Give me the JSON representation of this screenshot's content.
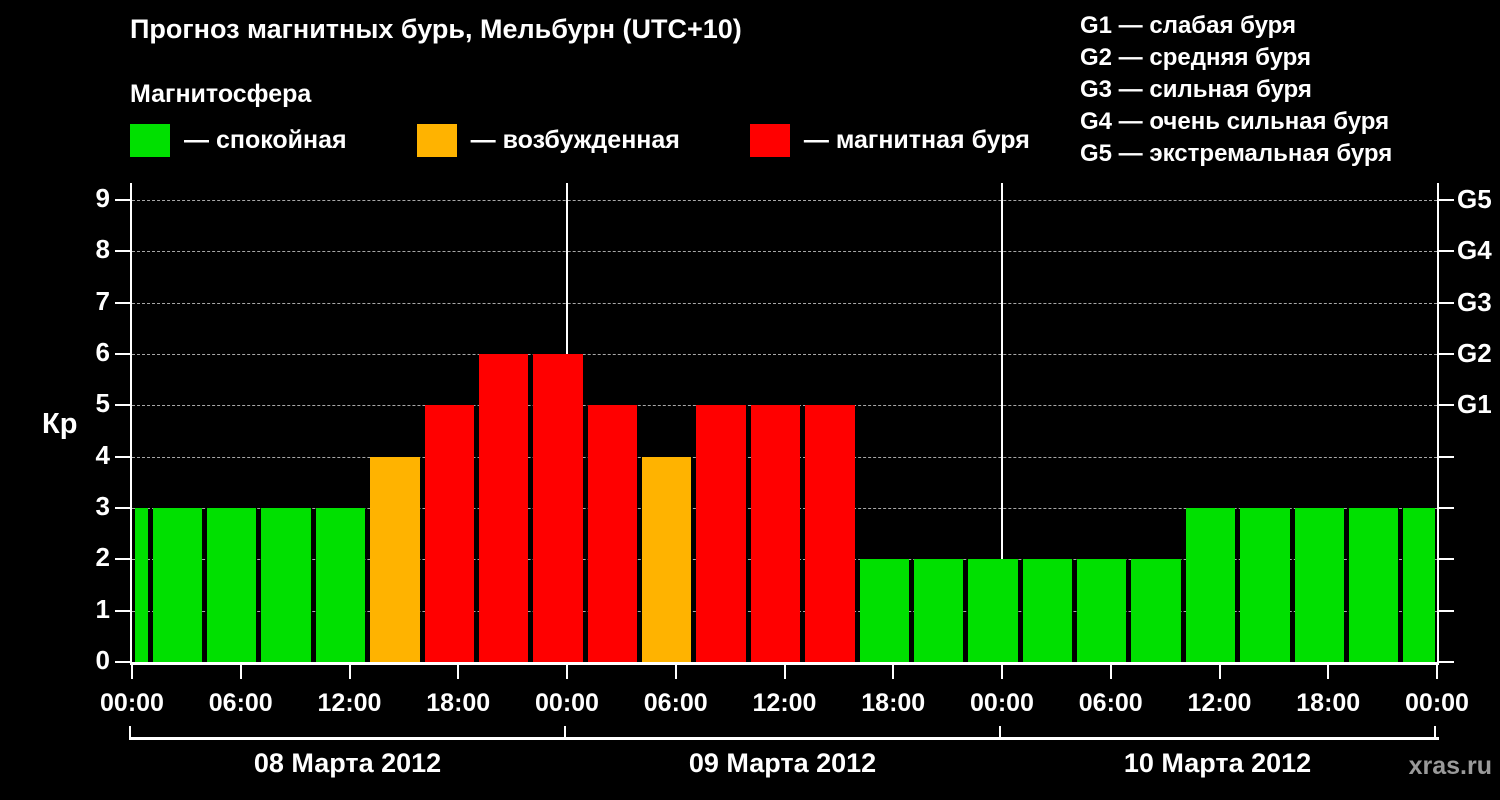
{
  "title": "Прогноз магнитных бурь, Мельбурн (UTC+10)",
  "legend": {
    "title": "Магнитосфера",
    "items": [
      {
        "state": "quiet",
        "label": "— спокойная",
        "color": "#00e000"
      },
      {
        "state": "unsettled",
        "label": "— возбужденная",
        "color": "#ffb300"
      },
      {
        "state": "storm",
        "label": "— магнитная буря",
        "color": "#ff0000"
      }
    ]
  },
  "storm_scale": [
    "G1 — слабая буря",
    "G2 — средняя буря",
    "G3 — сильная буря",
    "G4 — очень сильная буря",
    "G5 — экстремальная буря"
  ],
  "watermark": "xras.ru",
  "chart_data": {
    "type": "bar",
    "title": "Прогноз магнитных бурь, Мельбурн (UTC+10)",
    "ylabel": "Кр",
    "xlabel": "",
    "ylim": [
      0,
      9
    ],
    "yticks": [
      0,
      1,
      2,
      3,
      4,
      5,
      6,
      7,
      8,
      9
    ],
    "grid": "dashed horizontal line at each Kp integer level",
    "legend_position": "top",
    "right_axis": [
      {
        "label": "G1",
        "kp": 5
      },
      {
        "label": "G2",
        "kp": 6
      },
      {
        "label": "G3",
        "kp": 7
      },
      {
        "label": "G4",
        "kp": 8
      },
      {
        "label": "G5",
        "kp": 9
      }
    ],
    "x_hours_total": 72,
    "xticks": [
      {
        "hour": 0,
        "label": "00:00"
      },
      {
        "hour": 6,
        "label": "06:00"
      },
      {
        "hour": 12,
        "label": "12:00"
      },
      {
        "hour": 18,
        "label": "18:00"
      },
      {
        "hour": 24,
        "label": "00:00"
      },
      {
        "hour": 30,
        "label": "06:00"
      },
      {
        "hour": 36,
        "label": "12:00"
      },
      {
        "hour": 42,
        "label": "18:00"
      },
      {
        "hour": 48,
        "label": "00:00"
      },
      {
        "hour": 54,
        "label": "06:00"
      },
      {
        "hour": 60,
        "label": "12:00"
      },
      {
        "hour": 66,
        "label": "18:00"
      },
      {
        "hour": 72,
        "label": "00:00"
      }
    ],
    "days": [
      {
        "label": "08 Марта 2012",
        "start": 0,
        "end": 24
      },
      {
        "label": "09 Марта 2012",
        "start": 24,
        "end": 48
      },
      {
        "label": "10 Марта 2012",
        "start": 48,
        "end": 72
      }
    ],
    "day_boundary_hours": [
      24,
      48
    ],
    "date_axis_tick_hours": [
      0,
      24,
      48,
      72
    ],
    "colors": {
      "quiet": "#00e000",
      "unsettled": "#ffb300",
      "storm": "#ff0000"
    },
    "bars": [
      {
        "start": 0,
        "end": 1,
        "kp": 3,
        "state": "quiet"
      },
      {
        "start": 1,
        "end": 4,
        "kp": 3,
        "state": "quiet"
      },
      {
        "start": 4,
        "end": 7,
        "kp": 3,
        "state": "quiet"
      },
      {
        "start": 7,
        "end": 10,
        "kp": 3,
        "state": "quiet"
      },
      {
        "start": 10,
        "end": 13,
        "kp": 3,
        "state": "quiet"
      },
      {
        "start": 13,
        "end": 16,
        "kp": 4,
        "state": "unsettled"
      },
      {
        "start": 16,
        "end": 19,
        "kp": 5,
        "state": "storm"
      },
      {
        "start": 19,
        "end": 22,
        "kp": 6,
        "state": "storm"
      },
      {
        "start": 22,
        "end": 25,
        "kp": 6,
        "state": "storm"
      },
      {
        "start": 25,
        "end": 28,
        "kp": 5,
        "state": "storm"
      },
      {
        "start": 28,
        "end": 31,
        "kp": 4,
        "state": "unsettled"
      },
      {
        "start": 31,
        "end": 34,
        "kp": 5,
        "state": "storm"
      },
      {
        "start": 34,
        "end": 37,
        "kp": 5,
        "state": "storm"
      },
      {
        "start": 37,
        "end": 40,
        "kp": 5,
        "state": "storm"
      },
      {
        "start": 40,
        "end": 43,
        "kp": 2,
        "state": "quiet"
      },
      {
        "start": 43,
        "end": 46,
        "kp": 2,
        "state": "quiet"
      },
      {
        "start": 46,
        "end": 49,
        "kp": 2,
        "state": "quiet"
      },
      {
        "start": 49,
        "end": 52,
        "kp": 2,
        "state": "quiet"
      },
      {
        "start": 52,
        "end": 55,
        "kp": 2,
        "state": "quiet"
      },
      {
        "start": 55,
        "end": 58,
        "kp": 2,
        "state": "quiet"
      },
      {
        "start": 58,
        "end": 61,
        "kp": 3,
        "state": "quiet"
      },
      {
        "start": 61,
        "end": 64,
        "kp": 3,
        "state": "quiet"
      },
      {
        "start": 64,
        "end": 67,
        "kp": 3,
        "state": "quiet"
      },
      {
        "start": 67,
        "end": 70,
        "kp": 3,
        "state": "quiet"
      },
      {
        "start": 70,
        "end": 72,
        "kp": 3,
        "state": "quiet"
      }
    ]
  }
}
